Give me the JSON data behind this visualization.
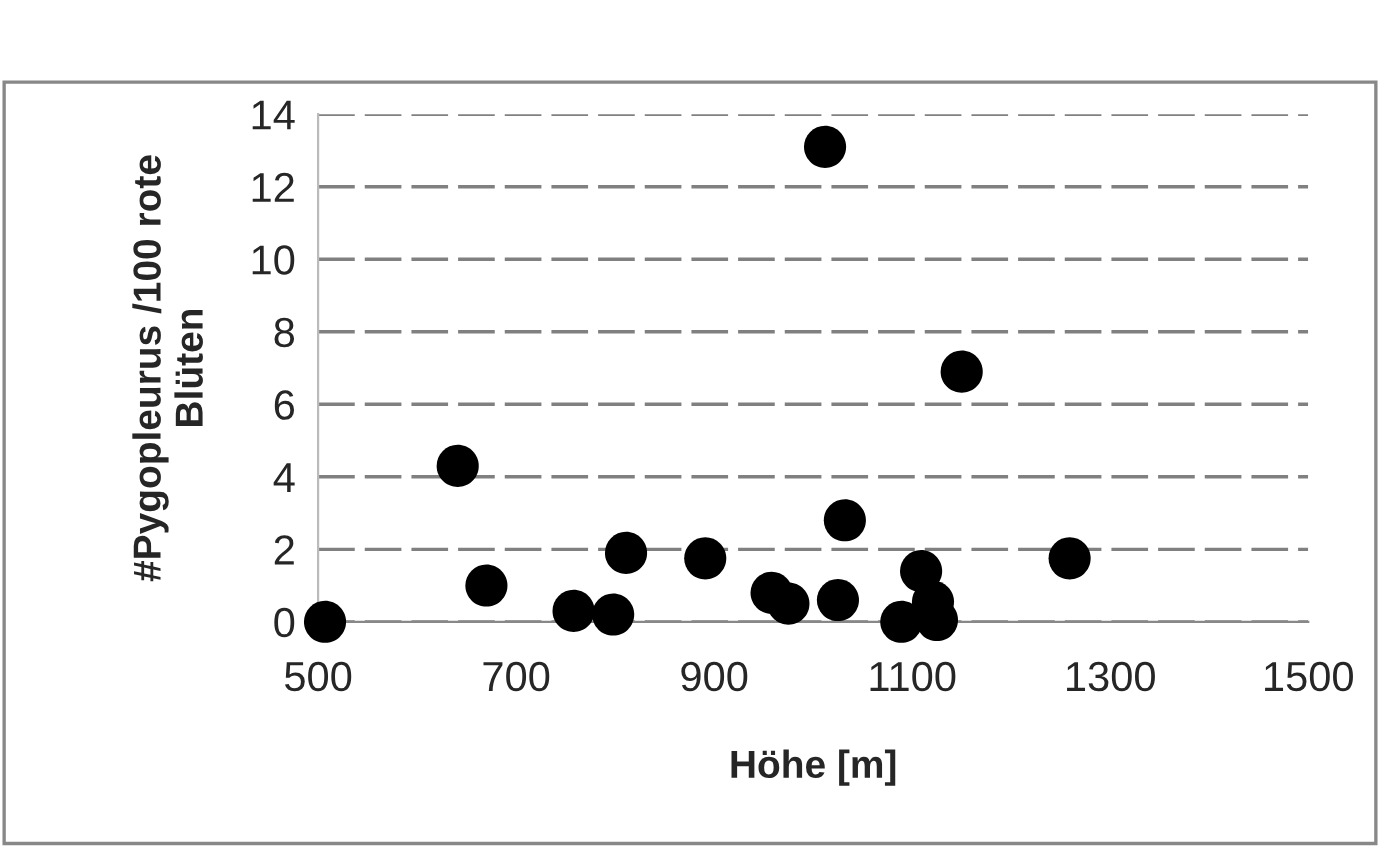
{
  "chart_data": {
    "type": "scatter",
    "xlabel": "Höhe [m]",
    "ylabel": "#Pygopleurus /100 rote\nBlüten",
    "x": [
      507,
      641,
      670,
      758,
      798,
      811,
      891,
      958,
      975,
      1012,
      1025,
      1032,
      1089,
      1109,
      1121,
      1125,
      1150,
      1259
    ],
    "series": [
      {
        "color": "#000000",
        "values": [
          0,
          4.3,
          1.0,
          0.3,
          0.2,
          1.9,
          1.75,
          0.8,
          0.5,
          13.1,
          0.6,
          2.8,
          0,
          1.4,
          0.55,
          0.05,
          6.9,
          1.75
        ]
      }
    ],
    "xlim": [
      500,
      1500
    ],
    "xticks": [
      500,
      700,
      900,
      1100,
      1300,
      1500
    ],
    "ylim": [
      0,
      14
    ],
    "yticks": [
      0,
      2,
      4,
      6,
      8,
      10,
      12,
      14
    ],
    "grid": "y",
    "marker": "circle",
    "legend": false
  }
}
